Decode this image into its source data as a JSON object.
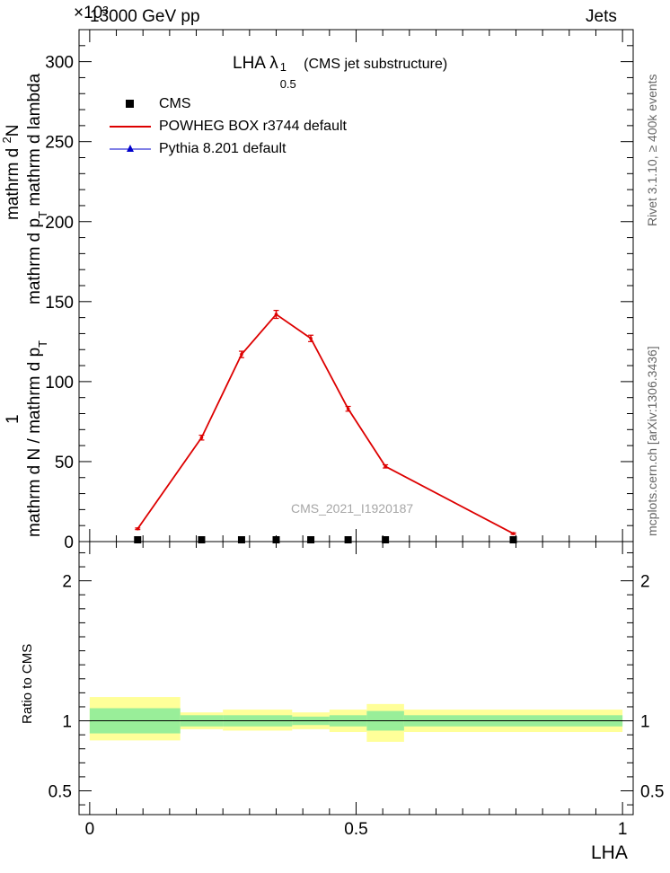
{
  "header": {
    "left": "13000 GeV pp",
    "right": "Jets",
    "exponent": "×10³"
  },
  "plot_title": {
    "main": "LHA λ",
    "sup": "1",
    "sub": "0.5",
    "suffix": " (CMS jet substructure)"
  },
  "side_labels": {
    "rivet": "Rivet 3.1.10, ≥ 400k events",
    "mcplots": "mcplots.cern.ch [arXiv:1306.3436]"
  },
  "watermark": "CMS_2021_I1920187",
  "ylabel_main": {
    "numerator_1": "mathrm d",
    "numerator_2": "N",
    "numerator_sup": "2",
    "den_1": "mathrm d p",
    "den_sub": "T",
    "den_2": " mathrm d lambda",
    "bottom_num": "1",
    "bottom_den_1": "mathrm d N / mathrm d p",
    "bottom_den_sub": "T"
  },
  "chart_data": [
    {
      "type": "line",
      "panel": "main",
      "xlim": [
        -0.02,
        1.02
      ],
      "ylim": [
        0,
        320
      ],
      "yticks": [
        0,
        50,
        100,
        150,
        200,
        250,
        300
      ],
      "ytick_labels": [
        "0",
        "50",
        "100",
        "150",
        "200",
        "250",
        "300"
      ],
      "grid": false,
      "legend_position": "top-left",
      "legend": [
        {
          "label": "CMS",
          "marker": "square",
          "color": "#000000"
        },
        {
          "label": "POWHEG BOX r3744 default",
          "marker": "line",
          "color": "#dd0000"
        },
        {
          "label": "Pythia 8.201 default",
          "marker": "triangle",
          "color": "#0000cc"
        }
      ],
      "series": [
        {
          "name": "POWHEG BOX r3744 default",
          "color": "#dd0000",
          "x": [
            0.09,
            0.21,
            0.285,
            0.35,
            0.415,
            0.485,
            0.555,
            0.795
          ],
          "y": [
            8,
            65,
            117,
            142,
            127,
            83,
            47,
            5
          ],
          "yerr": [
            0.5,
            1.5,
            2.0,
            2.5,
            2.0,
            1.5,
            1.0,
            0.5
          ]
        },
        {
          "name": "CMS",
          "color": "#000000",
          "x": [
            0.09,
            0.21,
            0.285,
            0.35,
            0.415,
            0.485,
            0.555,
            0.795
          ],
          "y": [
            0,
            0,
            0,
            0,
            0,
            0,
            0,
            0
          ]
        }
      ]
    },
    {
      "type": "area",
      "panel": "ratio",
      "xlabel": "LHA",
      "ylabel": "Ratio to CMS",
      "xlim": [
        -0.02,
        1.02
      ],
      "ylim": [
        0.33,
        2.28
      ],
      "xticks": [
        0,
        0.5,
        1
      ],
      "xtick_labels": [
        "0",
        "0.5",
        "1"
      ],
      "yticks": [
        0.5,
        1,
        2
      ],
      "ytick_labels": [
        "0.5",
        "1",
        "2"
      ],
      "bins": [
        {
          "x0": 0.0,
          "x1": 0.17,
          "inner": [
            0.91,
            1.09
          ],
          "outer": [
            0.86,
            1.17
          ]
        },
        {
          "x0": 0.17,
          "x1": 0.25,
          "inner": [
            0.96,
            1.04
          ],
          "outer": [
            0.94,
            1.06
          ]
        },
        {
          "x0": 0.25,
          "x1": 0.38,
          "inner": [
            0.96,
            1.04
          ],
          "outer": [
            0.93,
            1.08
          ]
        },
        {
          "x0": 0.38,
          "x1": 0.45,
          "inner": [
            0.97,
            1.03
          ],
          "outer": [
            0.94,
            1.06
          ]
        },
        {
          "x0": 0.45,
          "x1": 0.52,
          "inner": [
            0.96,
            1.04
          ],
          "outer": [
            0.92,
            1.08
          ]
        },
        {
          "x0": 0.52,
          "x1": 0.59,
          "inner": [
            0.93,
            1.07
          ],
          "outer": [
            0.85,
            1.12
          ]
        },
        {
          "x0": 0.59,
          "x1": 1.0,
          "inner": [
            0.96,
            1.04
          ],
          "outer": [
            0.92,
            1.08
          ]
        }
      ],
      "colors": {
        "inner": "#99ee99",
        "outer": "#ffff99"
      }
    }
  ]
}
